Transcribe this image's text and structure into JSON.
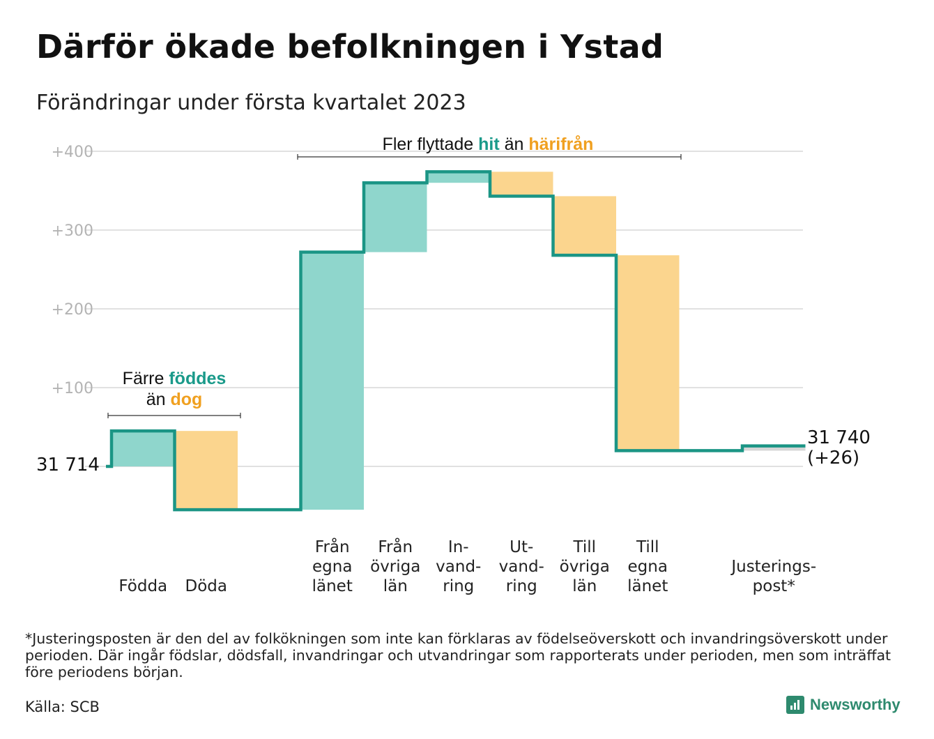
{
  "title": "Därför ökade befolkningen i Ystad",
  "subtitle": "Förändringar under första kvartalet 2023",
  "chart_data": {
    "type": "waterfall",
    "start_value": 31714,
    "start_label": "31 714",
    "end_label_line1": "31 740",
    "end_label_line2": "(+26)",
    "y_ticks": [
      "+400",
      "+300",
      "+200",
      "+100"
    ],
    "y_tick_values": [
      400,
      300,
      200,
      100
    ],
    "ylim": [
      -60,
      400
    ],
    "grid": true,
    "steps": [
      {
        "label_lines": [
          "Födda"
        ],
        "delta": 45,
        "kind": "positive"
      },
      {
        "label_lines": [
          "Döda"
        ],
        "delta": -100,
        "kind": "negative"
      },
      {
        "label_lines": [
          ""
        ],
        "delta": 0,
        "kind": "gap"
      },
      {
        "label_lines": [
          "Från",
          "egna",
          "länet"
        ],
        "delta": 327,
        "kind": "positive"
      },
      {
        "label_lines": [
          "Från",
          "övriga",
          "län"
        ],
        "delta": 88,
        "kind": "positive"
      },
      {
        "label_lines": [
          "In-",
          "vand-",
          "ring"
        ],
        "delta": 14,
        "kind": "positive"
      },
      {
        "label_lines": [
          "Ut-",
          "vand-",
          "ring"
        ],
        "delta": -31,
        "kind": "negative"
      },
      {
        "label_lines": [
          "Till",
          "övriga",
          "län"
        ],
        "delta": -75,
        "kind": "negative"
      },
      {
        "label_lines": [
          "Till",
          "egna",
          "länet"
        ],
        "delta": -248,
        "kind": "negative"
      },
      {
        "label_lines": [
          ""
        ],
        "delta": 0,
        "kind": "gap"
      },
      {
        "label_lines": [
          "Justerings-",
          "post*"
        ],
        "delta": 6,
        "kind": "adjust"
      }
    ],
    "annotations": {
      "births": {
        "line1_pre": "Färre ",
        "line1_bold": "föddes",
        "line2_pre": "än ",
        "line2_bold": "dog"
      },
      "migration": {
        "pre": "Fler flyttade ",
        "bold1": "hit",
        "mid": " än ",
        "bold2": "härifrån"
      }
    },
    "colors": {
      "line": "#1b9585",
      "positive": "#8fd6cc",
      "negative": "#fbd58e",
      "adjust": "#d6d6d6",
      "grid": "#e1e1e1"
    }
  },
  "footnote": "*Justeringsposten är den del av folkökningen som inte kan förklaras av födelseöverskott och invandringsöverskott under perioden. Där ingår födslar, dödsfall, invandringar och utvandringar som rapporterats under perioden, men som inträffat före periodens början.",
  "source": "Källa: SCB",
  "brand": "Newsworthy"
}
